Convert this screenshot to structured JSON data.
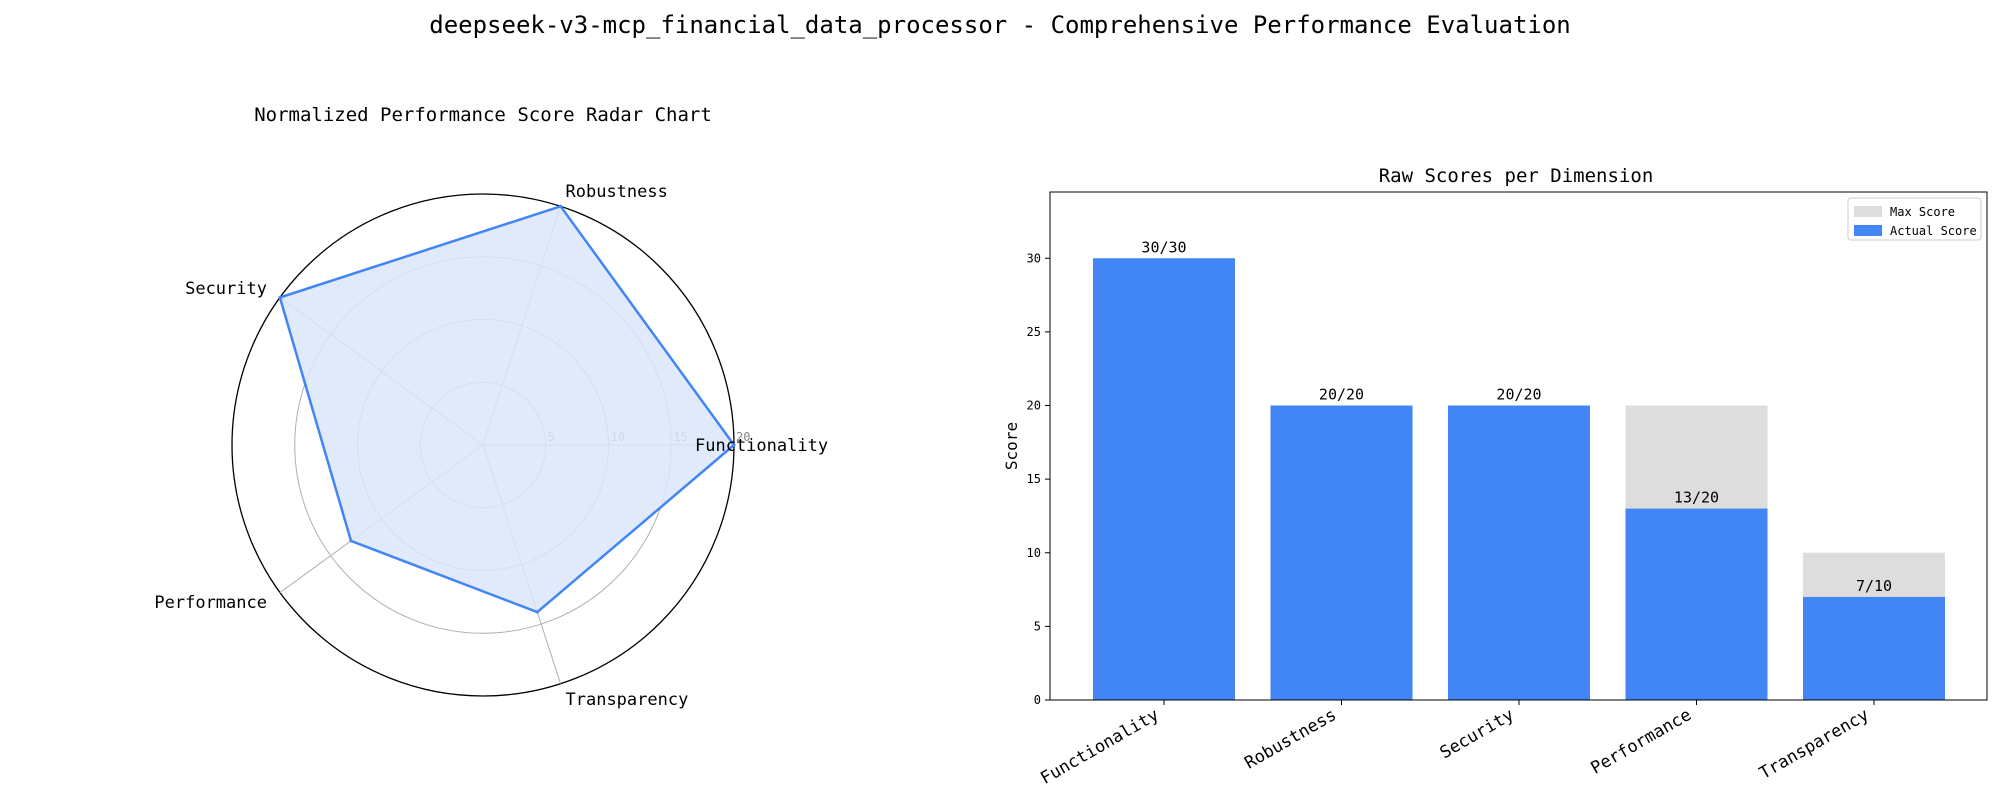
{
  "figure": {
    "title": "deepseek-v3-mcp_financial_data_processor - Comprehensive Performance Evaluation"
  },
  "colors": {
    "accent": "#4285F4",
    "radar_fill": "#dbe6fa",
    "max_bar": "#dddddd",
    "grid": "#b0b0b0"
  },
  "chart_data": [
    {
      "type": "radar",
      "title": "Normalized Performance Score Radar Chart",
      "categories": [
        "Functionality",
        "Robustness",
        "Security",
        "Performance",
        "Transparency"
      ],
      "values": [
        20,
        20,
        20,
        13,
        14
      ],
      "rlim": [
        0,
        20
      ],
      "rticks": [
        "5",
        "10",
        "15",
        "20"
      ],
      "grid": true
    },
    {
      "type": "bar",
      "title": "Raw Scores per Dimension",
      "categories": [
        "Functionality",
        "Robustness",
        "Security",
        "Performance",
        "Transparency"
      ],
      "series": [
        {
          "name": "Max Score",
          "values": [
            30,
            20,
            20,
            20,
            10
          ]
        },
        {
          "name": "Actual Score",
          "values": [
            30,
            20,
            20,
            13,
            7
          ]
        }
      ],
      "data_labels": [
        "30/30",
        "20/20",
        "20/20",
        "13/20",
        "7/10"
      ],
      "ylabel": "Score",
      "ylim": [
        0,
        34.5
      ],
      "yticks": [
        "0",
        "5",
        "10",
        "15",
        "20",
        "25",
        "30"
      ],
      "legend": "top-right",
      "grid": false
    }
  ]
}
